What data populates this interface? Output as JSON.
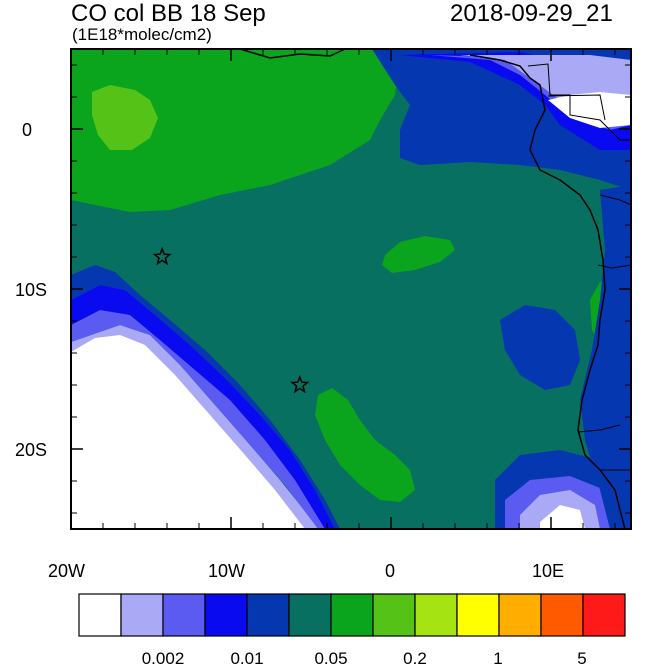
{
  "header": {
    "title": "CO col BB 18 Sep",
    "units": "(1E18*molec/cm2)",
    "timestamp": "2018-09-29_21"
  },
  "map": {
    "lon_range": [
      -20,
      15
    ],
    "lat_range": [
      -25,
      5
    ],
    "x_ticks": [
      "20W",
      "10W",
      "0",
      "10E"
    ],
    "y_ticks": [
      "0",
      "10S",
      "20S"
    ],
    "markers": [
      {
        "type": "star",
        "lon": -14.3,
        "lat": -8.0
      },
      {
        "type": "star",
        "lon": -5.7,
        "lat": -16.0
      }
    ]
  },
  "colorbar": {
    "colors": [
      "#ffffff",
      "#a9a9f5",
      "#5b5bf2",
      "#0a0af0",
      "#0437b0",
      "#077060",
      "#0aa51c",
      "#55c218",
      "#a6e312",
      "#ffff00",
      "#ffae00",
      "#ff5a00",
      "#ff1a1a"
    ],
    "labels": [
      "0.002",
      "0.01",
      "0.05",
      "0.2",
      "1",
      "5"
    ]
  }
}
